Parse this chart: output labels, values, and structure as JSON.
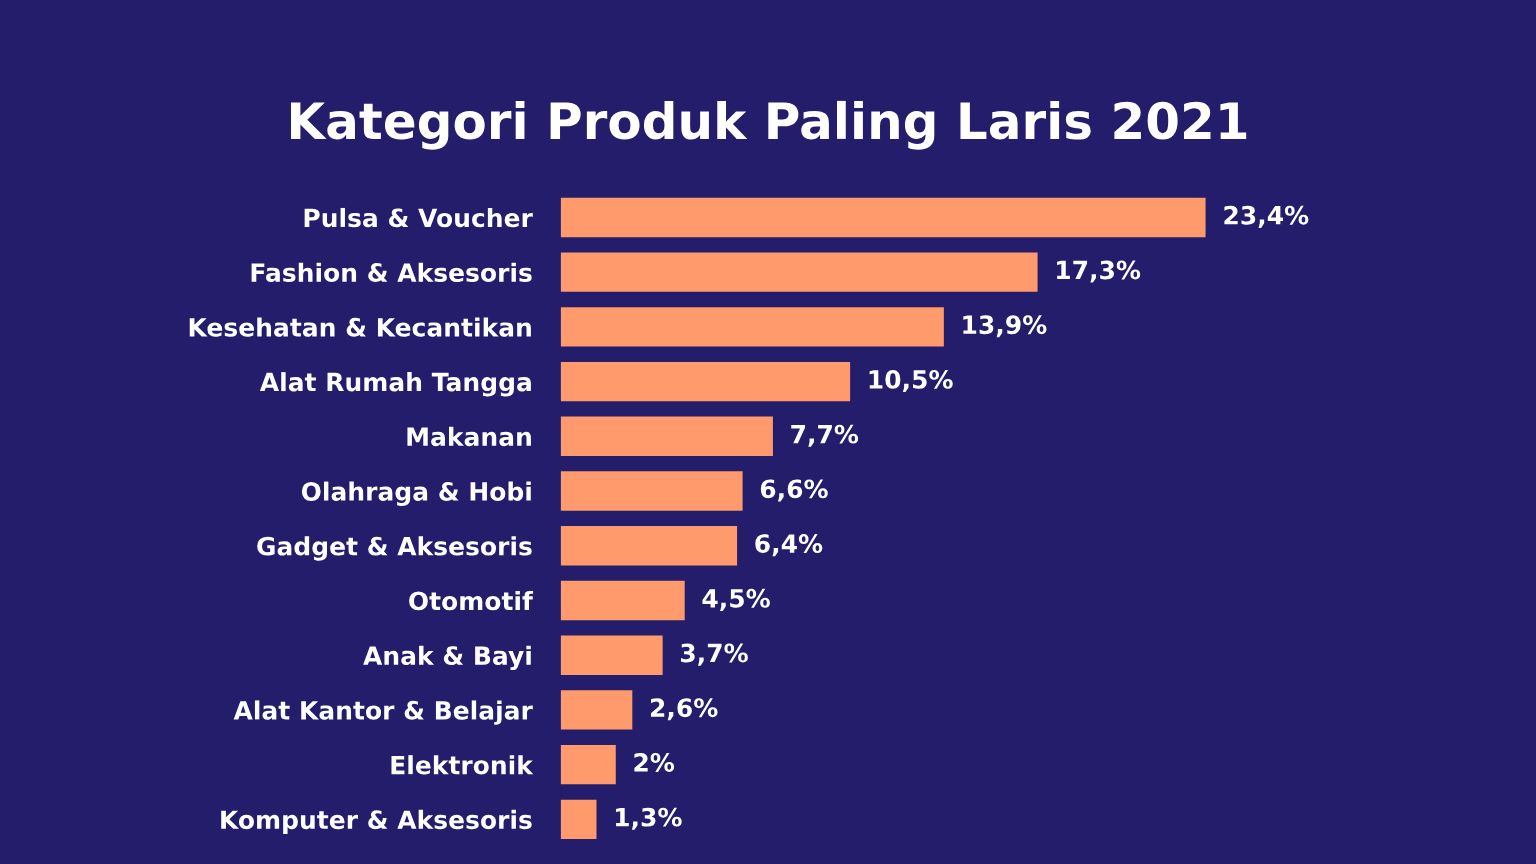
{
  "chart_data": {
    "type": "bar",
    "orientation": "horizontal",
    "title": "Kategori Produk Paling Laris 2021",
    "categories": [
      "Pulsa & Voucher",
      "Fashion & Aksesoris",
      "Kesehatan & Kecantikan",
      "Alat Rumah Tangga",
      "Makanan",
      "Olahraga & Hobi",
      "Gadget & Aksesoris",
      "Otomotif",
      "Anak & Bayi",
      "Alat Kantor & Belajar",
      "Elektronik",
      "Komputer & Aksesoris"
    ],
    "values": [
      23.4,
      17.3,
      13.9,
      10.5,
      7.7,
      6.6,
      6.4,
      4.5,
      3.7,
      2.6,
      2,
      1.3
    ],
    "value_labels": [
      "23,4%",
      "17,3%",
      "13,9%",
      "10,5%",
      "7,7%",
      "6,6%",
      "6,4%",
      "4,5%",
      "3,7%",
      "2,6%",
      "2%",
      "1,3%"
    ],
    "color": "#fe9a6c",
    "tick_labels": "y",
    "grid": false,
    "legend": false
  }
}
